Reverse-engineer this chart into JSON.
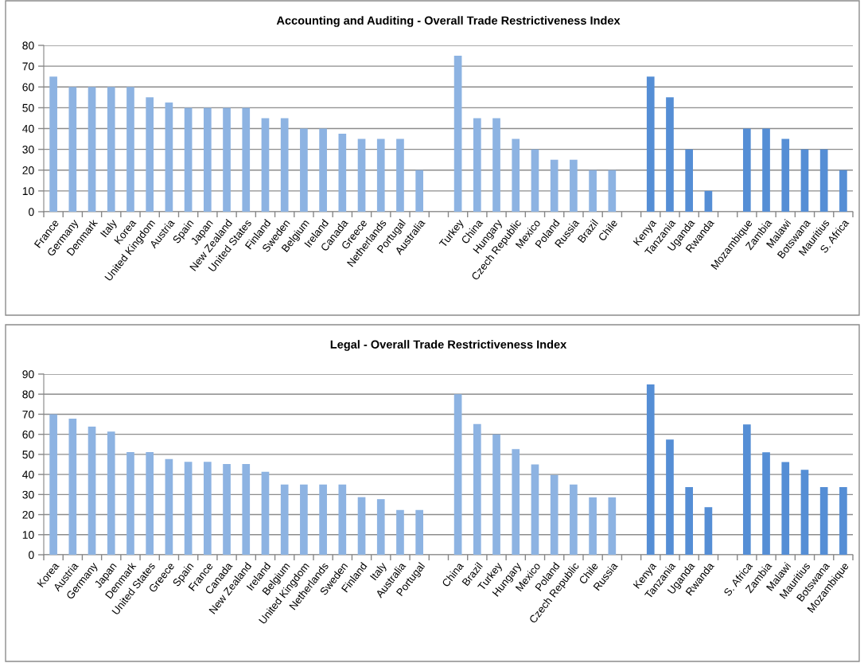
{
  "chart_data": [
    {
      "type": "bar",
      "title": "Accounting and Auditing - Overall Trade Restrictiveness Index",
      "categories": [
        "France",
        "Germany",
        "Denmark",
        "Italy",
        "Korea",
        "United Kingdom",
        "Austria",
        "Spain",
        "Japan",
        "New Zealand",
        "United States",
        "Finland",
        "Sweden",
        "Belgium",
        "Ireland",
        "Canada",
        "Greece",
        "Netherlands",
        "Portugal",
        "Australia",
        null,
        "Turkey",
        "China",
        "Hungary",
        "Czech Republic",
        "Mexico",
        "Poland",
        "Russia",
        "Brazil",
        "Chile",
        null,
        "Kenya",
        "Tanzania",
        "Uganda",
        "Rwanda",
        null,
        "Mozambique",
        "Zambia",
        "Malawi",
        "Botswana",
        "Mauritius",
        "S. Africa"
      ],
      "values": [
        65,
        60,
        60,
        60,
        60,
        55,
        52.5,
        50,
        50,
        50,
        50,
        45,
        45,
        40,
        40,
        37.5,
        35,
        35,
        35,
        20,
        null,
        75,
        45,
        45,
        35,
        30,
        25,
        25,
        20,
        20,
        null,
        65,
        55,
        30,
        10,
        null,
        40,
        40,
        35,
        30,
        30,
        20
      ],
      "colors": [
        "#8db3e2",
        "#8db3e2",
        "#8db3e2",
        "#8db3e2",
        "#8db3e2",
        "#8db3e2",
        "#8db3e2",
        "#8db3e2",
        "#8db3e2",
        "#8db3e2",
        "#8db3e2",
        "#8db3e2",
        "#8db3e2",
        "#8db3e2",
        "#8db3e2",
        "#8db3e2",
        "#8db3e2",
        "#8db3e2",
        "#8db3e2",
        "#8db3e2",
        null,
        "#8db3e2",
        "#8db3e2",
        "#8db3e2",
        "#8db3e2",
        "#8db3e2",
        "#8db3e2",
        "#8db3e2",
        "#8db3e2",
        "#8db3e2",
        null,
        "#558ed5",
        "#558ed5",
        "#558ed5",
        "#558ed5",
        null,
        "#558ed5",
        "#558ed5",
        "#558ed5",
        "#558ed5",
        "#558ed5",
        "#558ed5"
      ],
      "ylim": [
        0,
        80
      ],
      "yticks": [
        0,
        10,
        20,
        30,
        40,
        50,
        60,
        70,
        80
      ],
      "grid": "y",
      "legend": false
    },
    {
      "type": "bar",
      "title": "Legal - Overall Trade Restrictiveness Index",
      "categories": [
        "Korea",
        "Austria",
        "Germany",
        "Japan",
        "Denmark",
        "United States",
        "Greece",
        "Spain",
        "France",
        "Canada",
        "New Zealand",
        "Ireland",
        "Belgium",
        "United Kingdom",
        "Netherlands",
        "Sweden",
        "Finland",
        "Italy",
        "Australia",
        "Portugal",
        null,
        "China",
        "Brazil",
        "Turkey",
        "Hungary",
        "Mexico",
        "Poland",
        "Czech Republic",
        "Chile",
        "Russia",
        null,
        "Kenya",
        "Tanzania",
        "Uganda",
        "Rwanda",
        null,
        "S. Africa",
        "Zambia",
        "Malawi",
        "Mauritius",
        "Botswana",
        "Mozambique"
      ],
      "values": [
        70,
        67.8,
        63.8,
        61.4,
        51.1,
        51.1,
        47.7,
        46.3,
        46.3,
        45.2,
        45.2,
        41.3,
        35,
        35,
        35,
        35,
        28.7,
        27.7,
        22.3,
        22.3,
        null,
        80,
        65.1,
        60,
        52.6,
        45,
        39.7,
        35,
        28.6,
        28.6,
        null,
        84.8,
        57.4,
        33.7,
        23.7,
        null,
        64.9,
        51,
        46.2,
        42.3,
        33.7,
        33.7
      ],
      "colors": [
        "#8db3e2",
        "#8db3e2",
        "#8db3e2",
        "#8db3e2",
        "#8db3e2",
        "#8db3e2",
        "#8db3e2",
        "#8db3e2",
        "#8db3e2",
        "#8db3e2",
        "#8db3e2",
        "#8db3e2",
        "#8db3e2",
        "#8db3e2",
        "#8db3e2",
        "#8db3e2",
        "#8db3e2",
        "#8db3e2",
        "#8db3e2",
        "#8db3e2",
        null,
        "#8db3e2",
        "#8db3e2",
        "#8db3e2",
        "#8db3e2",
        "#8db3e2",
        "#8db3e2",
        "#8db3e2",
        "#8db3e2",
        "#8db3e2",
        null,
        "#558ed5",
        "#558ed5",
        "#558ed5",
        "#558ed5",
        null,
        "#558ed5",
        "#558ed5",
        "#558ed5",
        "#558ed5",
        "#558ed5",
        "#558ed5"
      ],
      "ylim": [
        0,
        90
      ],
      "yticks": [
        0,
        10,
        20,
        30,
        40,
        50,
        60,
        70,
        80,
        90
      ],
      "grid": "y",
      "legend": false
    }
  ]
}
